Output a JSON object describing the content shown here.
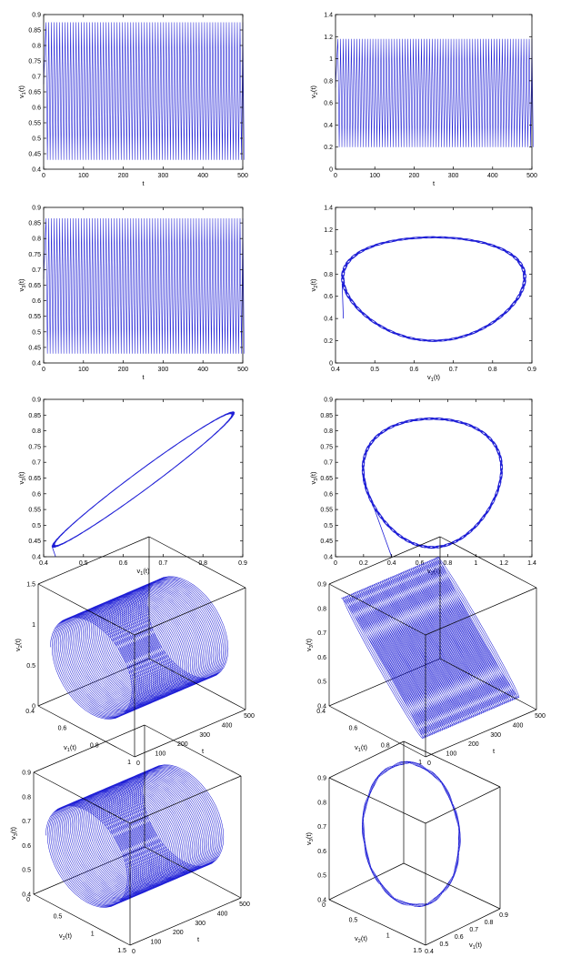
{
  "chart_data": [
    {
      "id": "p1",
      "type": "line",
      "xlabel": "t",
      "ylabel": "v_1(t)",
      "xlim": [
        0,
        500
      ],
      "ylim": [
        0.4,
        0.9
      ],
      "xticks": [
        0,
        100,
        200,
        300,
        400,
        500
      ],
      "yticks": [
        0.4,
        0.45,
        0.5,
        0.55,
        0.6,
        0.65,
        0.7,
        0.75,
        0.8,
        0.85,
        0.9
      ],
      "series": [
        {
          "signal": "oscillation",
          "t_range": [
            0,
            500
          ],
          "min": 0.43,
          "max": 0.875,
          "cycles": 72
        }
      ]
    },
    {
      "id": "p2",
      "type": "line",
      "xlabel": "t",
      "ylabel": "v_2(t)",
      "xlim": [
        0,
        500
      ],
      "ylim": [
        0,
        1.4
      ],
      "xticks": [
        0,
        100,
        200,
        300,
        400,
        500
      ],
      "yticks": [
        0,
        0.2,
        0.4,
        0.6,
        0.8,
        1,
        1.2,
        1.4
      ],
      "series": [
        {
          "signal": "oscillation",
          "t_range": [
            0,
            500
          ],
          "min": 0.2,
          "max": 1.18,
          "cycles": 72
        }
      ]
    },
    {
      "id": "p3",
      "type": "line",
      "xlabel": "t",
      "ylabel": "v_3(t)",
      "xlim": [
        0,
        500
      ],
      "ylim": [
        0.4,
        0.9
      ],
      "xticks": [
        0,
        100,
        200,
        300,
        400,
        500
      ],
      "yticks": [
        0.4,
        0.45,
        0.5,
        0.55,
        0.6,
        0.65,
        0.7,
        0.75,
        0.8,
        0.85,
        0.9
      ],
      "series": [
        {
          "signal": "oscillation",
          "t_range": [
            0,
            500
          ],
          "min": 0.43,
          "max": 0.865,
          "cycles": 72
        }
      ]
    },
    {
      "id": "p4",
      "type": "line",
      "xlabel": "v_1(t)",
      "ylabel": "v_2(t)",
      "xlim": [
        0.4,
        0.9
      ],
      "ylim": [
        0,
        1.4
      ],
      "xticks": [
        0.4,
        0.5,
        0.6,
        0.7,
        0.8,
        0.9
      ],
      "yticks": [
        0,
        0.2,
        0.4,
        0.6,
        0.8,
        1,
        1.2,
        1.4
      ],
      "series": [
        {
          "signal": "limit_cycle",
          "x_range": [
            0.42,
            0.88
          ],
          "y_range": [
            0.2,
            1.18
          ],
          "start": [
            0.42,
            0.4
          ]
        }
      ]
    },
    {
      "id": "p5",
      "type": "line",
      "xlabel": "v_1(t)",
      "ylabel": "v_3(t)",
      "xlim": [
        0.4,
        0.9
      ],
      "ylim": [
        0.4,
        0.9
      ],
      "xticks": [
        0.4,
        0.5,
        0.6,
        0.7,
        0.8,
        0.9
      ],
      "yticks": [
        0.4,
        0.45,
        0.5,
        0.55,
        0.6,
        0.65,
        0.7,
        0.75,
        0.8,
        0.85,
        0.9
      ],
      "series": [
        {
          "signal": "limit_cycle",
          "x_range": [
            0.42,
            0.88
          ],
          "y_range": [
            0.43,
            0.86
          ],
          "start": [
            0.43,
            0.4
          ]
        }
      ]
    },
    {
      "id": "p6",
      "type": "line",
      "xlabel": "v_2(t)",
      "ylabel": "v_3(t)",
      "xlim": [
        0,
        1.4
      ],
      "ylim": [
        0.4,
        0.9
      ],
      "xticks": [
        0,
        0.2,
        0.4,
        0.6,
        0.8,
        1,
        1.2,
        1.4
      ],
      "yticks": [
        0.4,
        0.45,
        0.5,
        0.55,
        0.6,
        0.65,
        0.7,
        0.75,
        0.8,
        0.85,
        0.9
      ],
      "series": [
        {
          "signal": "limit_cycle",
          "x_range": [
            0.2,
            1.18
          ],
          "y_range": [
            0.43,
            0.86
          ],
          "start": [
            0.4,
            0.4
          ]
        }
      ]
    },
    {
      "id": "p7",
      "type": "line3d",
      "axes_3d": [
        "t",
        "v_1(t)",
        "v_2(t)"
      ],
      "tick_values": {
        "t": [
          0,
          100,
          200,
          300,
          400,
          500
        ],
        "v_1(t)": [
          0.4,
          0.6,
          0.8,
          1
        ],
        "v_2(t)": [
          0,
          0.5,
          1,
          1.5
        ]
      }
    },
    {
      "id": "p8",
      "type": "line3d",
      "axes_3d": [
        "t",
        "v_1(t)",
        "v_3(t)"
      ],
      "tick_values": {
        "t": [
          0,
          100,
          200,
          300,
          400,
          500
        ],
        "v_1(t)": [
          0.4,
          0.6,
          0.8,
          1
        ],
        "v_3(t)": [
          0.4,
          0.5,
          0.6,
          0.7,
          0.8,
          0.9
        ]
      }
    },
    {
      "id": "p9",
      "type": "line3d",
      "axes_3d": [
        "t",
        "v_2(t)",
        "v_3(t)"
      ],
      "tick_values": {
        "t": [
          0,
          100,
          200,
          300,
          400,
          500
        ],
        "v_2(t)": [
          0,
          0.5,
          1,
          1.5
        ],
        "v_3(t)": [
          0.4,
          0.5,
          0.6,
          0.7,
          0.8,
          0.9
        ]
      }
    },
    {
      "id": "p10",
      "type": "line3d",
      "axes_3d": [
        "v_1(t)",
        "v_2(t)",
        "v_3(t)"
      ],
      "tick_values": {
        "v_1(t)": [
          0.4,
          0.5,
          0.6,
          0.7,
          0.8,
          0.9
        ],
        "v_2(t)": [
          0,
          0.5,
          1,
          1.5
        ],
        "v_3(t)": [
          0.4,
          0.5,
          0.6,
          0.7,
          0.8,
          0.9
        ]
      }
    }
  ],
  "colors": {
    "trace": "#1f1fd6",
    "axes": "#000000"
  }
}
